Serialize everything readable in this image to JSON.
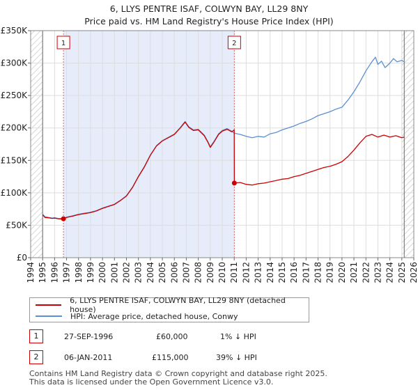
{
  "title": {
    "line1": "6, LLYS PENTRE ISAF, COLWYN BAY, LL29 8NY",
    "line2": "Price paid vs. HM Land Registry's House Price Index (HPI)"
  },
  "legend": {
    "property_label": "6, LLYS PENTRE ISAF, COLWYN BAY, LL29 8NY (detached house)",
    "hpi_label": "HPI: Average price, detached house, Conwy"
  },
  "transactions": [
    {
      "id": "1",
      "date": "27-SEP-1996",
      "price": "£60,000",
      "delta": "1% ↓ HPI"
    },
    {
      "id": "2",
      "date": "06-JAN-2011",
      "price": "£115,000",
      "delta": "39% ↓ HPI"
    }
  ],
  "footer": {
    "line1": "Contains HM Land Registry data © Crown copyright and database right 2025.",
    "line2": "This data is licensed under the Open Government Licence v3.0."
  },
  "colors": {
    "property": "#cc0000",
    "hpi": "#5b8fd4",
    "shade": "#e6ecfa",
    "hatch": "#bbbbbb",
    "grid": "#dddddd",
    "marker_line": "#dd6666"
  },
  "chart_data": {
    "type": "line",
    "title": "Price paid vs. HM Land Registry's House Price Index (HPI)",
    "xlabel": "",
    "ylabel": "",
    "xlim": [
      1994,
      2026
    ],
    "ylim": [
      0,
      350000
    ],
    "x_ticks": [
      "1994",
      "1995",
      "1996",
      "1997",
      "1998",
      "1999",
      "2000",
      "2001",
      "2002",
      "2003",
      "2004",
      "2005",
      "2006",
      "2007",
      "2008",
      "2009",
      "2010",
      "2011",
      "2012",
      "2013",
      "2014",
      "2015",
      "2016",
      "2017",
      "2018",
      "2019",
      "2020",
      "2021",
      "2022",
      "2023",
      "2024",
      "2025",
      "2026"
    ],
    "y_ticks": [
      {
        "value": 0,
        "label": "£0"
      },
      {
        "value": 50000,
        "label": "£50K"
      },
      {
        "value": 100000,
        "label": "£100K"
      },
      {
        "value": 150000,
        "label": "£150K"
      },
      {
        "value": 200000,
        "label": "£200K"
      },
      {
        "value": 250000,
        "label": "£250K"
      },
      {
        "value": 300000,
        "label": "£300K"
      },
      {
        "value": 350000,
        "label": "£350K"
      }
    ],
    "shaded_region": [
      1996.74,
      2011.01
    ],
    "hatched_regions": [
      [
        1994,
        1995
      ],
      [
        2025.0,
        2026
      ]
    ],
    "data_start": 1995.0,
    "data_end": 2025.2,
    "series": [
      {
        "name": "6, LLYS PENTRE ISAF, COLWYN BAY, LL29 8NY (detached house)",
        "points": [
          [
            1995.0,
            66000
          ],
          [
            1995.2,
            62000
          ],
          [
            1995.5,
            61500
          ],
          [
            1995.8,
            60500
          ],
          [
            1996.0,
            61000
          ],
          [
            1996.3,
            60000
          ],
          [
            1996.6,
            59500
          ],
          [
            1996.74,
            60000
          ],
          [
            1997.0,
            62000
          ],
          [
            1997.5,
            64000
          ],
          [
            1998.0,
            66500
          ],
          [
            1998.5,
            68000
          ],
          [
            1999.0,
            69500
          ],
          [
            1999.5,
            72000
          ],
          [
            2000.0,
            76000
          ],
          [
            2000.5,
            79000
          ],
          [
            2001.0,
            82000
          ],
          [
            2001.5,
            88000
          ],
          [
            2002.0,
            95000
          ],
          [
            2002.5,
            108000
          ],
          [
            2003.0,
            125000
          ],
          [
            2003.5,
            140000
          ],
          [
            2004.0,
            158000
          ],
          [
            2004.5,
            172000
          ],
          [
            2005.0,
            180000
          ],
          [
            2005.5,
            185000
          ],
          [
            2006.0,
            190000
          ],
          [
            2006.5,
            200000
          ],
          [
            2006.9,
            209000
          ],
          [
            2007.2,
            201000
          ],
          [
            2007.6,
            196000
          ],
          [
            2008.0,
            197000
          ],
          [
            2008.5,
            188000
          ],
          [
            2008.8,
            178000
          ],
          [
            2009.0,
            170000
          ],
          [
            2009.3,
            178000
          ],
          [
            2009.7,
            190000
          ],
          [
            2010.0,
            195000
          ],
          [
            2010.4,
            198000
          ],
          [
            2010.8,
            194000
          ],
          [
            2011.0,
            197000
          ],
          [
            2011.01,
            115000
          ],
          [
            2011.5,
            116000
          ],
          [
            2012.0,
            113000
          ],
          [
            2012.5,
            112000
          ],
          [
            2013.0,
            114000
          ],
          [
            2013.5,
            115000
          ],
          [
            2014.0,
            117000
          ],
          [
            2014.5,
            119000
          ],
          [
            2015.0,
            121000
          ],
          [
            2015.5,
            122000
          ],
          [
            2016.0,
            125000
          ],
          [
            2016.5,
            127000
          ],
          [
            2017.0,
            130000
          ],
          [
            2017.5,
            133000
          ],
          [
            2018.0,
            136000
          ],
          [
            2018.5,
            139000
          ],
          [
            2019.0,
            141000
          ],
          [
            2019.5,
            144000
          ],
          [
            2020.0,
            148000
          ],
          [
            2020.5,
            156000
          ],
          [
            2021.0,
            166000
          ],
          [
            2021.5,
            177000
          ],
          [
            2022.0,
            187000
          ],
          [
            2022.5,
            190000
          ],
          [
            2023.0,
            186000
          ],
          [
            2023.5,
            189000
          ],
          [
            2024.0,
            186000
          ],
          [
            2024.5,
            188000
          ],
          [
            2025.0,
            185000
          ],
          [
            2025.2,
            186000
          ]
        ]
      },
      {
        "name": "HPI: Average price, detached house, Conwy",
        "points": [
          [
            1995.0,
            67000
          ],
          [
            1995.2,
            63000
          ],
          [
            1995.5,
            62000
          ],
          [
            1995.8,
            61000
          ],
          [
            1996.0,
            61500
          ],
          [
            1996.3,
            60500
          ],
          [
            1996.6,
            60200
          ],
          [
            1996.74,
            60600
          ],
          [
            1997.0,
            62500
          ],
          [
            1997.5,
            64500
          ],
          [
            1998.0,
            67000
          ],
          [
            1998.5,
            68500
          ],
          [
            1999.0,
            70000
          ],
          [
            1999.5,
            72500
          ],
          [
            2000.0,
            76500
          ],
          [
            2000.5,
            79500
          ],
          [
            2001.0,
            82500
          ],
          [
            2001.5,
            88500
          ],
          [
            2002.0,
            95500
          ],
          [
            2002.5,
            108500
          ],
          [
            2003.0,
            125500
          ],
          [
            2003.5,
            140500
          ],
          [
            2004.0,
            158500
          ],
          [
            2004.5,
            172500
          ],
          [
            2005.0,
            180500
          ],
          [
            2005.5,
            185500
          ],
          [
            2006.0,
            190500
          ],
          [
            2006.5,
            200500
          ],
          [
            2006.9,
            210000
          ],
          [
            2007.2,
            202000
          ],
          [
            2007.6,
            197000
          ],
          [
            2008.0,
            198000
          ],
          [
            2008.5,
            189000
          ],
          [
            2008.8,
            179000
          ],
          [
            2009.0,
            171000
          ],
          [
            2009.3,
            179000
          ],
          [
            2009.7,
            191000
          ],
          [
            2010.0,
            196000
          ],
          [
            2010.4,
            199000
          ],
          [
            2010.8,
            195000
          ],
          [
            2011.0,
            192000
          ],
          [
            2011.5,
            190000
          ],
          [
            2012.0,
            187000
          ],
          [
            2012.5,
            185000
          ],
          [
            2013.0,
            187000
          ],
          [
            2013.5,
            186000
          ],
          [
            2014.0,
            191000
          ],
          [
            2014.5,
            193000
          ],
          [
            2015.0,
            197000
          ],
          [
            2015.5,
            200000
          ],
          [
            2016.0,
            203000
          ],
          [
            2016.5,
            207000
          ],
          [
            2017.0,
            210000
          ],
          [
            2017.5,
            214000
          ],
          [
            2018.0,
            219000
          ],
          [
            2018.5,
            222000
          ],
          [
            2019.0,
            225000
          ],
          [
            2019.5,
            229000
          ],
          [
            2020.0,
            232000
          ],
          [
            2020.5,
            243000
          ],
          [
            2021.0,
            256000
          ],
          [
            2021.5,
            271000
          ],
          [
            2022.0,
            288000
          ],
          [
            2022.5,
            302000
          ],
          [
            2022.8,
            309000
          ],
          [
            2023.0,
            298000
          ],
          [
            2023.3,
            303000
          ],
          [
            2023.6,
            293000
          ],
          [
            2024.0,
            300000
          ],
          [
            2024.3,
            307000
          ],
          [
            2024.6,
            302000
          ],
          [
            2025.0,
            304000
          ],
          [
            2025.2,
            302000
          ]
        ]
      }
    ],
    "sale_markers": [
      {
        "label": "1",
        "x": 1996.74,
        "y": 60000
      },
      {
        "label": "2",
        "x": 2011.01,
        "y": 115000
      }
    ]
  }
}
